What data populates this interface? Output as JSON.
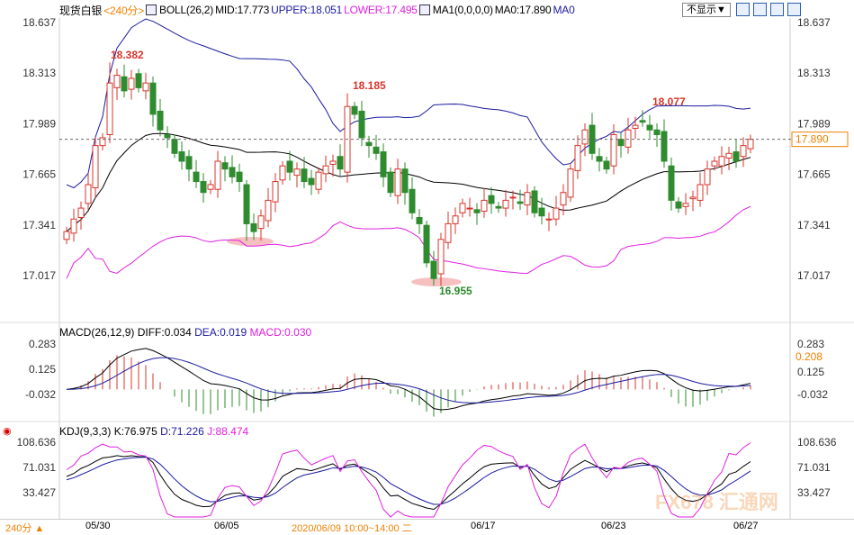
{
  "header": {
    "symbol": "现货白银",
    "period": "<240分>",
    "boll": "BOLL(26,2)",
    "mid": "MID:17.773",
    "upper": "UPPER:18.051",
    "lower": "LOWER:17.495",
    "ma": "MA1(0,0,0,0)",
    "ma0": "MA0:17.890",
    "ma0b": "MA0",
    "display_select": "不显示▼"
  },
  "macd": {
    "label": "MACD(26,12,9)",
    "diff": "DIFF:0.034",
    "dea": "DEA:0.019",
    "macd": "MACD:0.030",
    "current": "0.208"
  },
  "kdj": {
    "label": "KDJ(9,3,3)",
    "k": "K:76.975",
    "d": "D:71.226",
    "j": "J:88.474"
  },
  "footer": {
    "period": "240分 ▲",
    "dates": [
      "05/30",
      "06/05",
      "2020/06/09 10:00~14:00 二",
      "06/17",
      "06/23",
      "06/27"
    ]
  },
  "watermark": "FX678 汇通网",
  "colors": {
    "up": "#d9342b",
    "down": "#2e8b2e",
    "boll_upper": "#1a1aa0",
    "boll_mid": "#000000",
    "boll_lower": "#e020e0",
    "accent": "#f08000"
  },
  "chart_data": {
    "type": "candlestick",
    "price_ticks": [
      "18.637",
      "18.313",
      "17.989",
      "17.665",
      "17.341",
      "17.017"
    ],
    "ylim": [
      16.85,
      18.72
    ],
    "last_price": "17.890",
    "annotations": [
      {
        "text": "18.382",
        "color": "#d9342b"
      },
      {
        "text": "18.185",
        "color": "#d9342b"
      },
      {
        "text": "18.077",
        "color": "#d9342b"
      },
      {
        "text": "16.955",
        "color": "#2e8b2e"
      }
    ],
    "closes": [
      17.3,
      17.38,
      17.45,
      17.6,
      17.85,
      17.9,
      18.25,
      18.3,
      18.2,
      18.28,
      18.22,
      18.25,
      18.05,
      17.95,
      17.9,
      17.8,
      17.75,
      17.7,
      17.62,
      17.55,
      17.6,
      17.75,
      17.7,
      17.65,
      17.62,
      17.35,
      17.3,
      17.4,
      17.5,
      17.62,
      17.72,
      17.68,
      17.7,
      17.62,
      17.6,
      17.68,
      17.72,
      17.75,
      17.7,
      18.1,
      18.05,
      17.9,
      17.85,
      17.8,
      17.65,
      17.55,
      17.7,
      17.55,
      17.42,
      17.35,
      17.1,
      17.0,
      17.25,
      17.35,
      17.4,
      17.48,
      17.45,
      17.42,
      17.5,
      17.48,
      17.45,
      17.5,
      17.52,
      17.48,
      17.55,
      17.42,
      17.4,
      17.38,
      17.45,
      17.55,
      17.7,
      17.85,
      17.95,
      17.8,
      17.75,
      17.7,
      17.92,
      17.85,
      17.95,
      17.98,
      18.0,
      17.95,
      17.92,
      17.75,
      17.5,
      17.45,
      17.48,
      17.52,
      17.6,
      17.7,
      17.75,
      17.78,
      17.8,
      17.75,
      17.85,
      17.89
    ],
    "macd_ticks": [
      "0.283",
      "0.125",
      "-0.032"
    ],
    "kdj_ticks": [
      "108.636",
      "71.031",
      "33.427"
    ]
  }
}
